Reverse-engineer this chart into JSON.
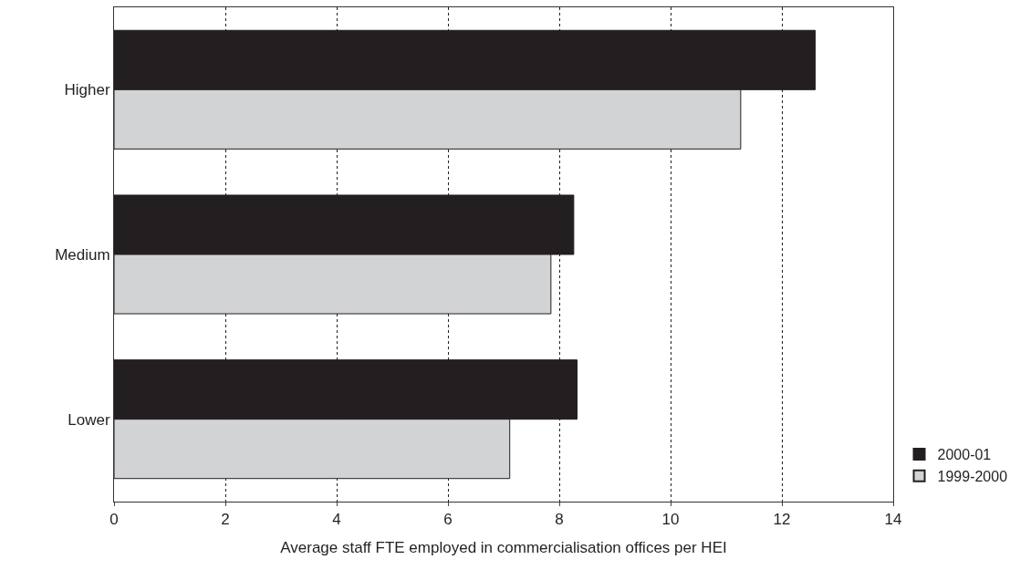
{
  "chart_data": {
    "type": "bar",
    "orientation": "horizontal",
    "xlabel": "Average staff FTE employed in commercialisation offices per HEI",
    "categories": [
      "Higher",
      "Medium",
      "Lower"
    ],
    "series": [
      {
        "name": "2000-01",
        "color": "#231f20",
        "values": [
          12.6,
          8.26,
          8.32
        ]
      },
      {
        "name": "1999-2000",
        "color": "#d1d3d4",
        "values": [
          11.26,
          7.85,
          7.11
        ]
      }
    ],
    "xlim": [
      0,
      14
    ],
    "xticks": [
      0,
      2,
      4,
      6,
      8,
      10,
      12,
      14
    ],
    "grid": "x",
    "legend": "bottom right"
  }
}
